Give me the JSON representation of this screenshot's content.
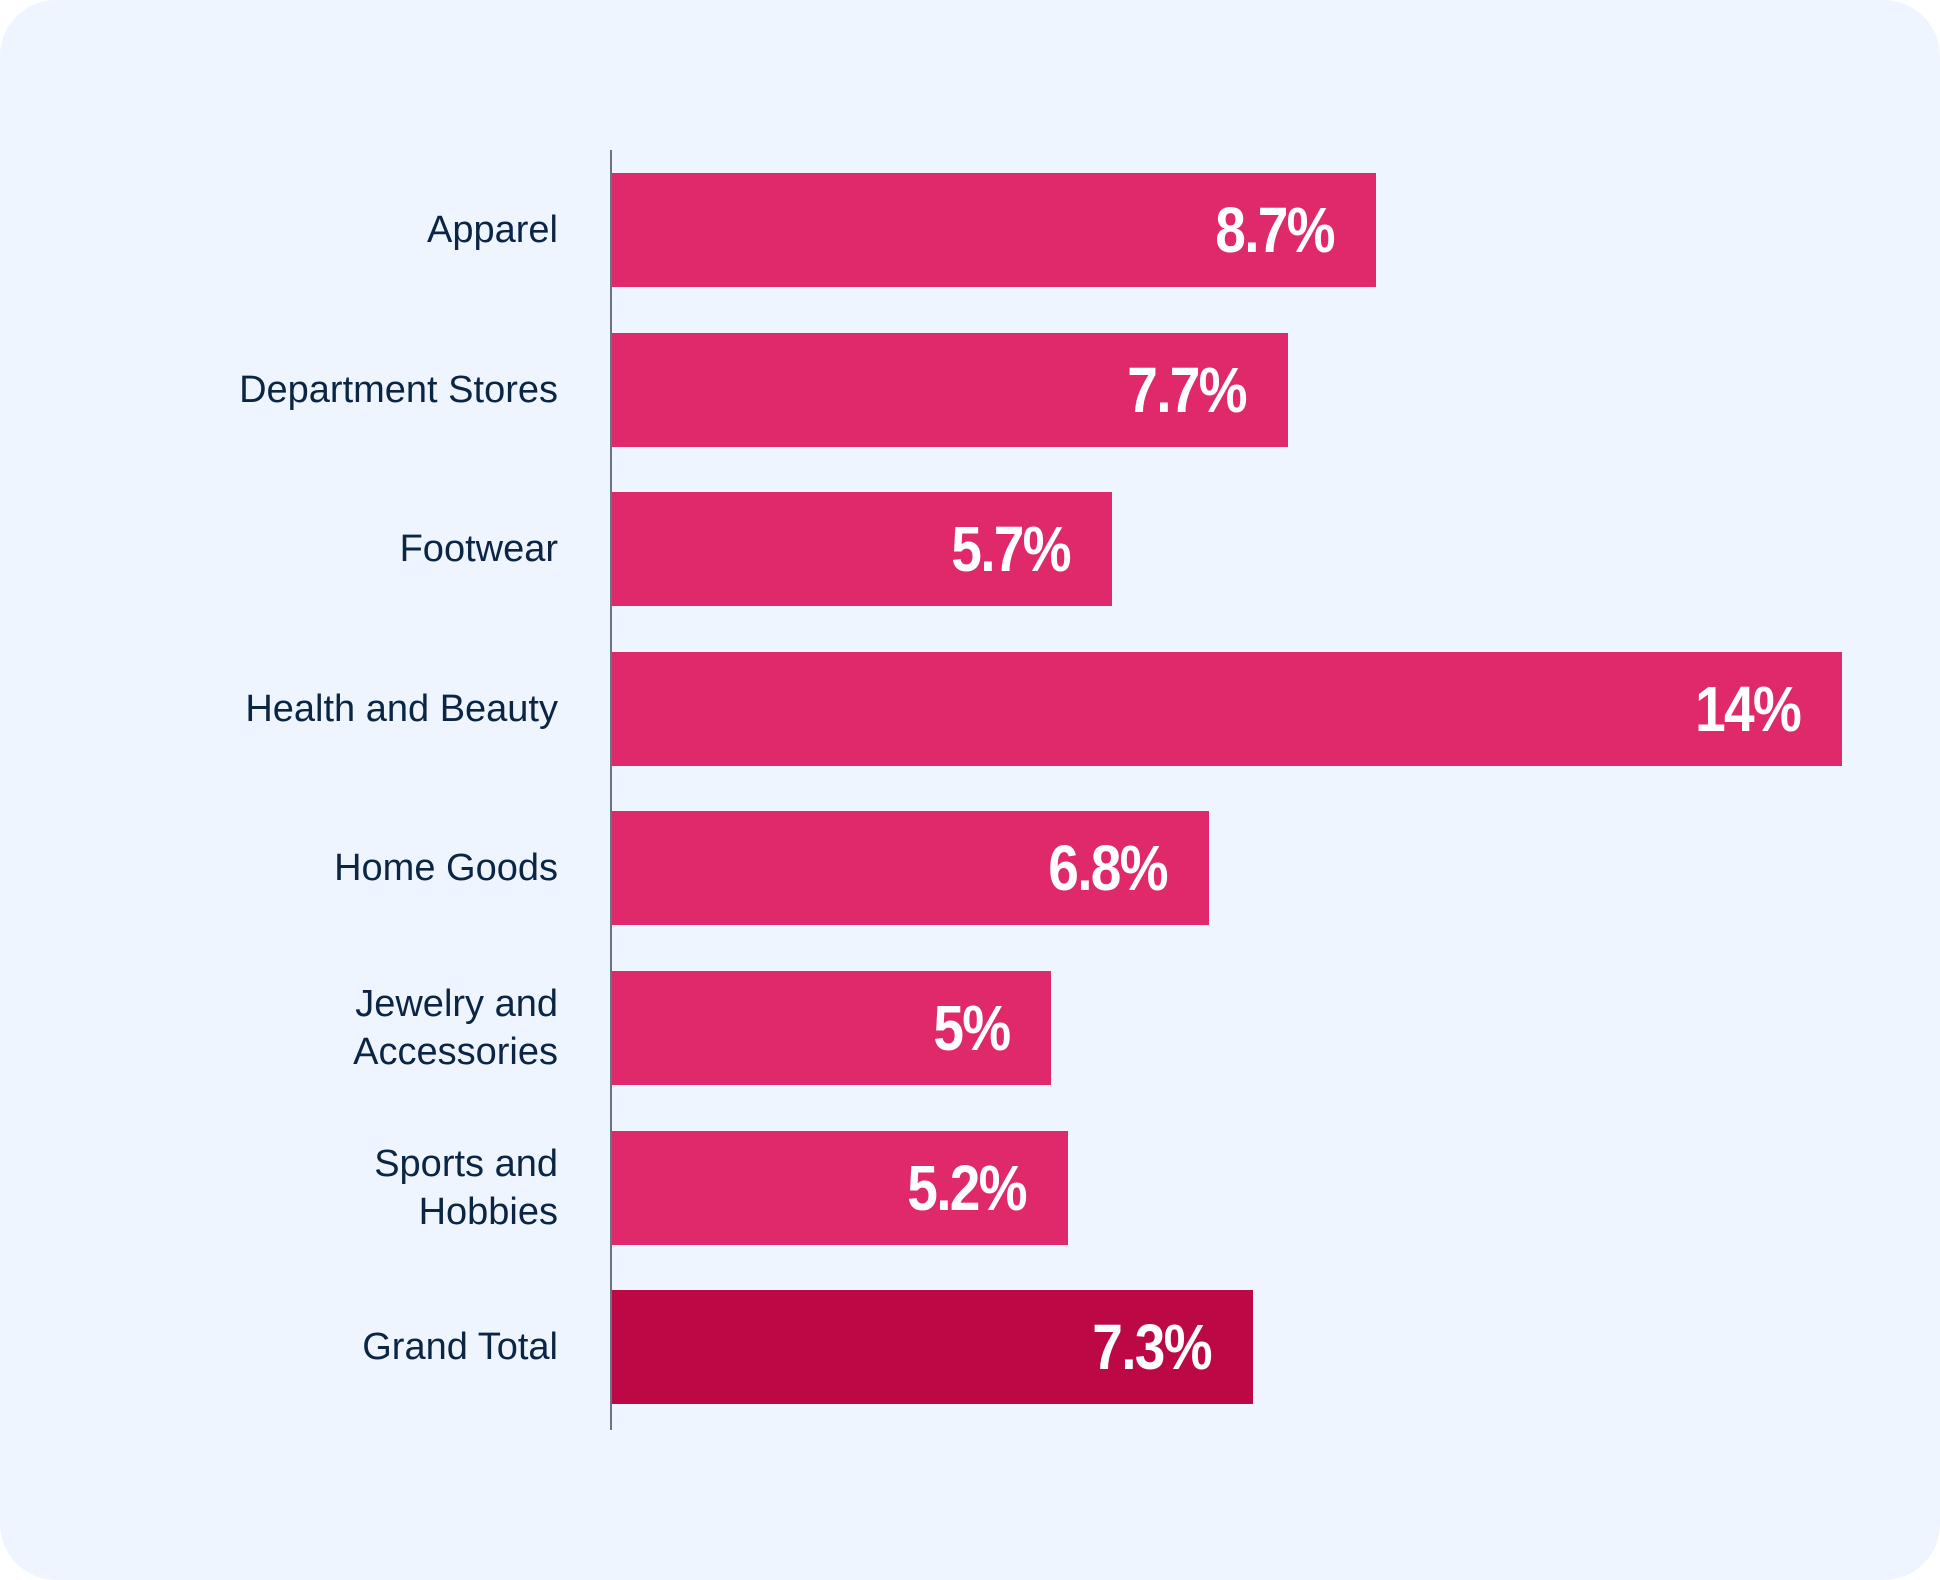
{
  "chart_data": {
    "type": "bar",
    "orientation": "horizontal",
    "title": "",
    "xlabel": "",
    "ylabel": "",
    "categories": [
      "Apparel",
      "Department Stores",
      "Footwear",
      "Health and Beauty",
      "Home Goods",
      "Jewelry and Accessories",
      "Sports and Hobbies",
      "Grand Total"
    ],
    "category_lines": [
      [
        "Apparel"
      ],
      [
        "Department Stores"
      ],
      [
        "Footwear"
      ],
      [
        "Health and Beauty"
      ],
      [
        "Home Goods"
      ],
      [
        "Jewelry and",
        "Accessories"
      ],
      [
        "Sports and",
        "Hobbies"
      ],
      [
        "Grand Total"
      ]
    ],
    "values": [
      8.7,
      7.7,
      5.7,
      14,
      6.8,
      5,
      5.2,
      7.3
    ],
    "value_labels": [
      "8.7%",
      "7.7%",
      "5.7%",
      "14%",
      "6.8%",
      "5%",
      "5.2%",
      "7.3%"
    ],
    "unit": "%",
    "xlim": [
      0,
      14
    ],
    "grid": false,
    "legend": "none",
    "colors": {
      "bar": "#E0296A",
      "total_bar": "#BC0946",
      "label_text": "#0B2545",
      "value_text": "#FFFFFF",
      "background": "#EEF5FE",
      "axis": "#6B7280"
    },
    "highlight_index": 7
  }
}
